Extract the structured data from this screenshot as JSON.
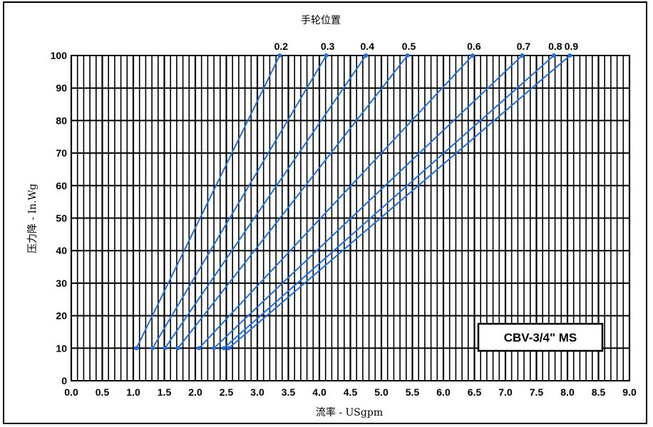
{
  "chart_data": {
    "type": "line",
    "title": "手轮位置",
    "xlabel": "流率 - USgpm",
    "ylabel": "压力降 - In.Wg",
    "model_label": "CBV-3/4\" MS",
    "xlim": [
      0.0,
      9.0
    ],
    "ylim": [
      0,
      100
    ],
    "x_ticks": [
      "0.0",
      "0.5",
      "1.0",
      "1.5",
      "2.0",
      "2.5",
      "3.0",
      "3.5",
      "4.0",
      "4.5",
      "5.0",
      "5.5",
      "6.0",
      "6.5",
      "7.0",
      "7.5",
      "8.0",
      "8.5",
      "9.0"
    ],
    "y_ticks": [
      "0",
      "10",
      "20",
      "30",
      "40",
      "50",
      "60",
      "70",
      "80",
      "90",
      "100"
    ],
    "grid": true,
    "line_color": "#1f6fe0",
    "series": [
      {
        "name": "0.2",
        "x": [
          1.05,
          3.36
        ],
        "y": [
          10,
          100
        ]
      },
      {
        "name": "0.3",
        "x": [
          1.31,
          4.11
        ],
        "y": [
          10,
          100
        ]
      },
      {
        "name": "0.4",
        "x": [
          1.51,
          4.75
        ],
        "y": [
          10,
          100
        ]
      },
      {
        "name": "0.5",
        "x": [
          1.72,
          5.42
        ],
        "y": [
          10,
          100
        ]
      },
      {
        "name": "0.6",
        "x": [
          2.06,
          6.47
        ],
        "y": [
          10,
          100
        ]
      },
      {
        "name": "0.7",
        "x": [
          2.3,
          7.27
        ],
        "y": [
          10,
          100
        ]
      },
      {
        "name": "0.8",
        "x": [
          2.46,
          7.78
        ],
        "y": [
          10,
          100
        ]
      },
      {
        "name": "0.9",
        "x": [
          2.54,
          8.04
        ],
        "y": [
          10,
          100
        ]
      }
    ]
  }
}
